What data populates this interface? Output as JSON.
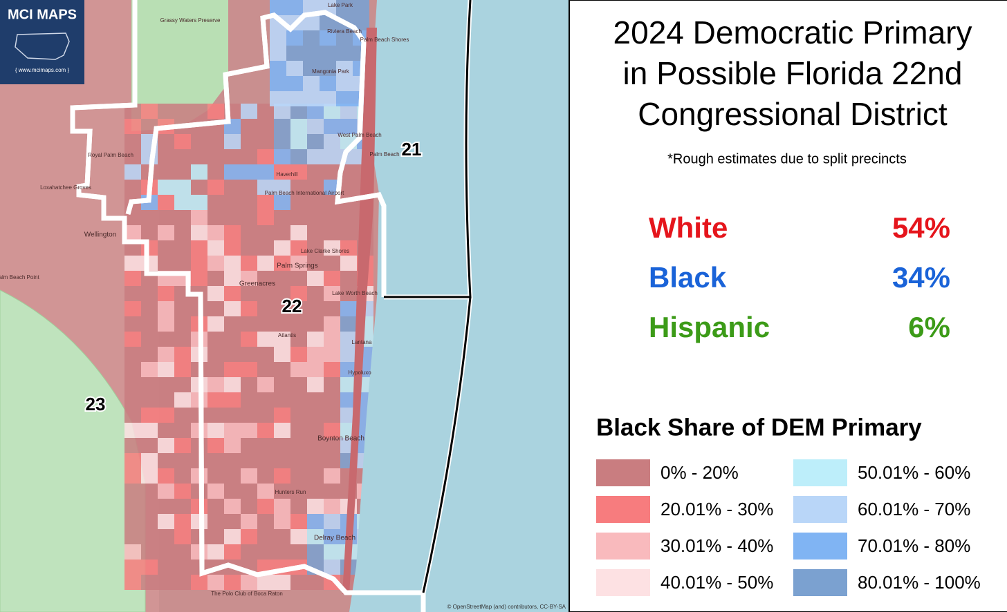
{
  "logo": {
    "title": "MCI MAPS",
    "url": "{ www.mcimaps.com }"
  },
  "map": {
    "districts": [
      "21",
      "22",
      "23"
    ],
    "places": [
      "Riviera Beach",
      "Mangonia Park",
      "Palm Beach Shores",
      "West Palm Beach",
      "Palm Beach",
      "Royal Palm Beach",
      "Loxahatchee Groves",
      "Wellington",
      "Haverhill",
      "Palm Beach International Airport",
      "Lake Clarke Shores",
      "Palm Springs",
      "Greenacres",
      "Lake Worth Beach",
      "Atlantis",
      "Lantana",
      "Hypoluxo",
      "Boynton Beach",
      "Delray Beach",
      "Hunters Run",
      "The Polo Club of Boca Raton",
      "Grassy Waters Preserve",
      "Palm Beach Point",
      "Lake Park"
    ],
    "attribution": "© OpenStreetMap (and) contributors, CC-BY-SA"
  },
  "panel": {
    "title": [
      "2024 Democratic Primary",
      "in Possible Florida 22nd",
      "Congressional District"
    ],
    "note": "*Rough estimates due to split precincts",
    "stats": [
      {
        "label": "White",
        "value": "54%",
        "color": "#e5151c"
      },
      {
        "label": "Black",
        "value": "34%",
        "color": "#1a63d8"
      },
      {
        "label": "Hispanic",
        "value": "6%",
        "color": "#3c9b18"
      }
    ],
    "legend": {
      "title": "Black Share of DEM Primary",
      "items": [
        {
          "label": "0% - 20%",
          "color": "#c97d80"
        },
        {
          "label": "20.01% - 30%",
          "color": "#f77c7e"
        },
        {
          "label": "30.01% - 40%",
          "color": "#f9babd"
        },
        {
          "label": "40.01% - 50%",
          "color": "#fde1e3"
        },
        {
          "label": "50.01% - 60%",
          "color": "#bdeefa"
        },
        {
          "label": "60.01% - 70%",
          "color": "#b9d6f8"
        },
        {
          "label": "70.01% - 80%",
          "color": "#80b4f3"
        },
        {
          "label": "80.01% - 100%",
          "color": "#7ba1d0"
        }
      ]
    }
  }
}
